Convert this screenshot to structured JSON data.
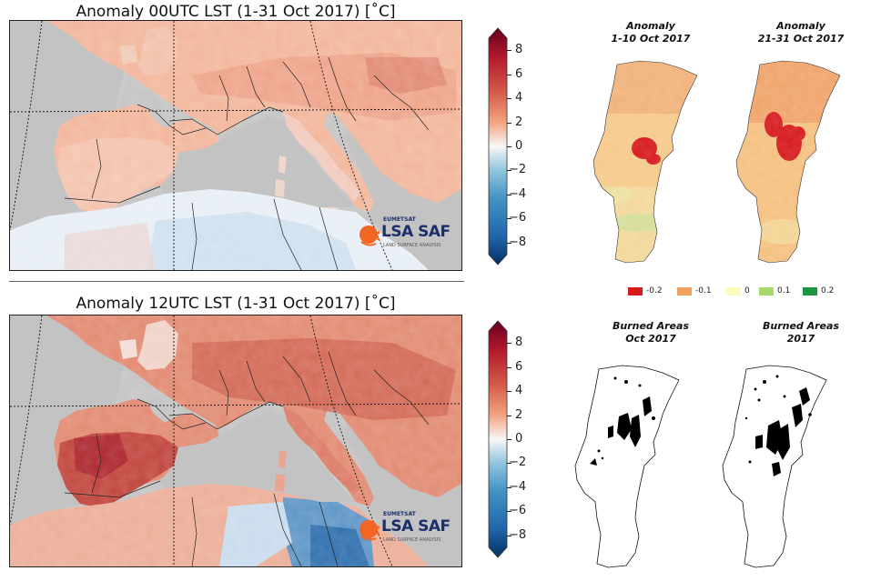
{
  "top_map": {
    "title": "Anomaly 00UTC LST (1-31 Oct 2017) [$^\\circ$C]",
    "title_display": "Anomaly 00UTC LST (1-31 Oct 2017) [˚C]"
  },
  "bottom_map": {
    "title_display": "Anomaly 12UTC LST (1-31 Oct 2017) [˚C]"
  },
  "colorbar": {
    "ticks": [
      "8",
      "6",
      "4",
      "2",
      "0",
      "−2",
      "−4",
      "−6",
      "−8"
    ],
    "range": [
      -9,
      9
    ],
    "colors": [
      "#053061",
      "#2166ac",
      "#4393c3",
      "#92c5de",
      "#f7f7f7",
      "#f4a582",
      "#d6604d",
      "#b2182b",
      "#67001f"
    ]
  },
  "logo": {
    "top": "EUMETSAT",
    "main": "LSA SAF",
    "sub": "LAND SURFACE ANALYSIS"
  },
  "portugal": {
    "anomaly_1": {
      "line1": "Anomaly",
      "line2": "1-10 Oct 2017"
    },
    "anomaly_2": {
      "line1": "Anomaly",
      "line2": "21-31 Oct 2017"
    },
    "burned_1": {
      "line1": "Burned Areas",
      "line2": "Oct 2017"
    },
    "burned_2": {
      "line1": "Burned Areas",
      "line2": "2017"
    }
  },
  "legend": [
    {
      "label": "-0.2",
      "color": "#d7191c"
    },
    {
      "label": "-0.1",
      "color": "#f4a05a"
    },
    {
      "label": "0",
      "color": "#fdfcc0"
    },
    {
      "label": "0.1",
      "color": "#a6d96a"
    },
    {
      "label": "0.2",
      "color": "#1a9641"
    }
  ]
}
